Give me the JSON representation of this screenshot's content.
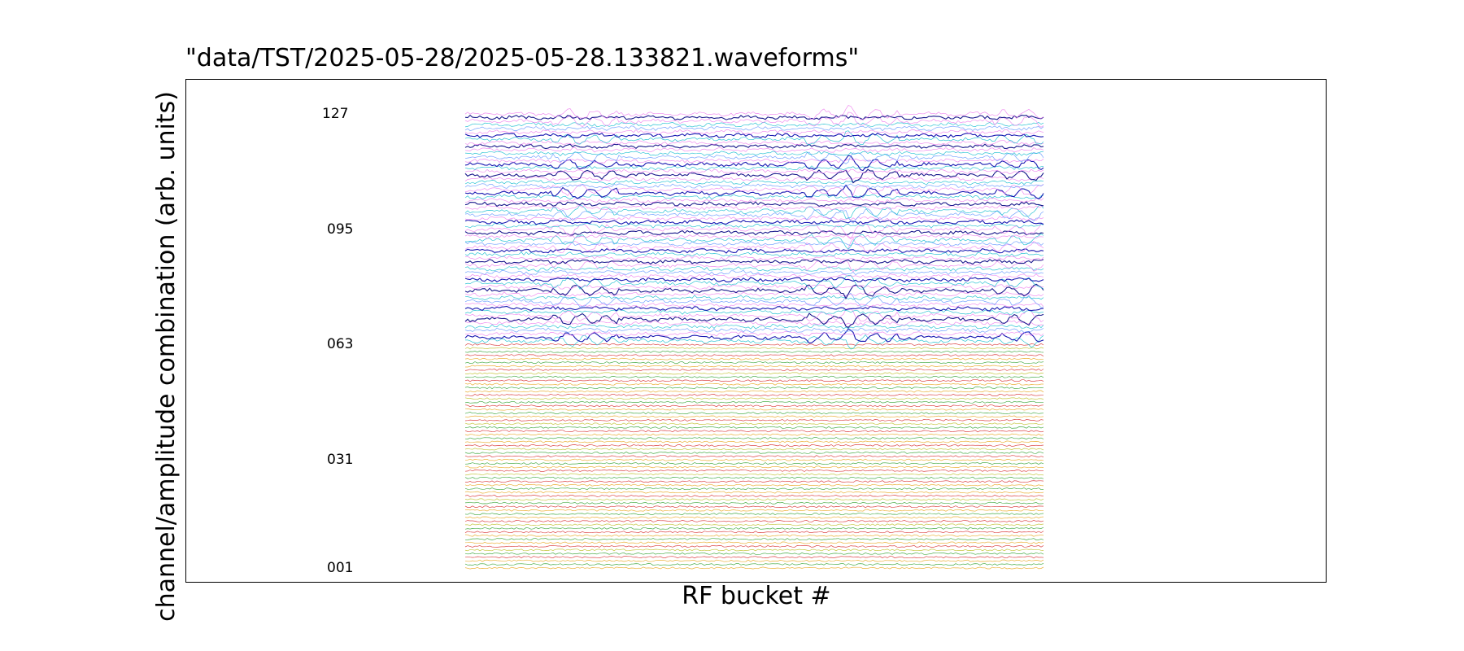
{
  "chart_data": {
    "type": "line",
    "title": "\"data/TST/2025-05-28/2025-05-28.133821.waveforms\"",
    "xlabel": "RF bucket #",
    "ylabel": "channel/amplitude combination (arb. units)",
    "y_tick_labels": [
      "127",
      "095",
      "063",
      "031",
      "001"
    ],
    "y_tick_values": [
      127,
      95,
      63,
      31,
      1
    ],
    "channels": {
      "first": 1,
      "last": 127
    },
    "grid": false,
    "legend": "none",
    "series_colors": [
      "#d62728",
      "#e8a317",
      "#2ca02c",
      "#17becf",
      "#0000aa",
      "#ee82ee",
      "#6699ff",
      "#000000"
    ],
    "note_colors": "lower channels (001-063) drawn in red/orange/green; upper channels (064-127) in cyan/blue/violet"
  }
}
